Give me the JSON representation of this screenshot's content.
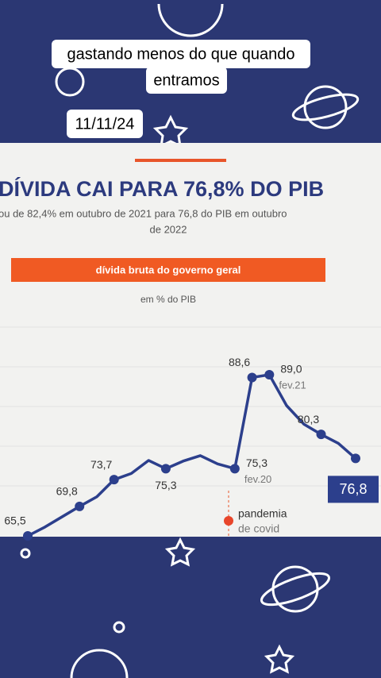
{
  "caption": [
    "gastando menos do que quando",
    "entramos"
  ],
  "date": "11/11/24",
  "chart_data": {
    "type": "line",
    "title": "DÍVIDA CAI PARA 76,8% DO PIB",
    "subtitle": [
      "ou de 82,4% em outubro de 2021 para 76,8 do PIB em outubro",
      "de 2022"
    ],
    "banner": "dívida bruta do governo geral",
    "unit_label": "em % do PIB",
    "annotation": [
      "pandemia",
      "de covid"
    ],
    "categories": [
      null,
      null,
      null,
      null,
      null,
      null,
      null,
      null,
      null,
      null,
      null,
      null,
      "fev.20",
      null,
      "fev.21",
      null,
      null,
      null,
      null,
      null
    ],
    "series": [
      {
        "color": "#2c3f8c",
        "values": [
          65.5,
          66.8,
          68.3,
          69.8,
          71.2,
          73.7,
          74.6,
          76.5,
          75.3,
          76.4,
          77.2,
          76.0,
          75.3,
          88.6,
          89.0,
          84.5,
          81.8,
          80.3,
          79.0,
          76.8
        ],
        "value_labels": [
          "65,5",
          null,
          null,
          "69,8",
          null,
          "73,7",
          null,
          null,
          "75,3",
          null,
          null,
          null,
          "75,3",
          "88,6",
          "89,0",
          null,
          null,
          "80,3",
          null,
          "76,8"
        ]
      }
    ]
  }
}
